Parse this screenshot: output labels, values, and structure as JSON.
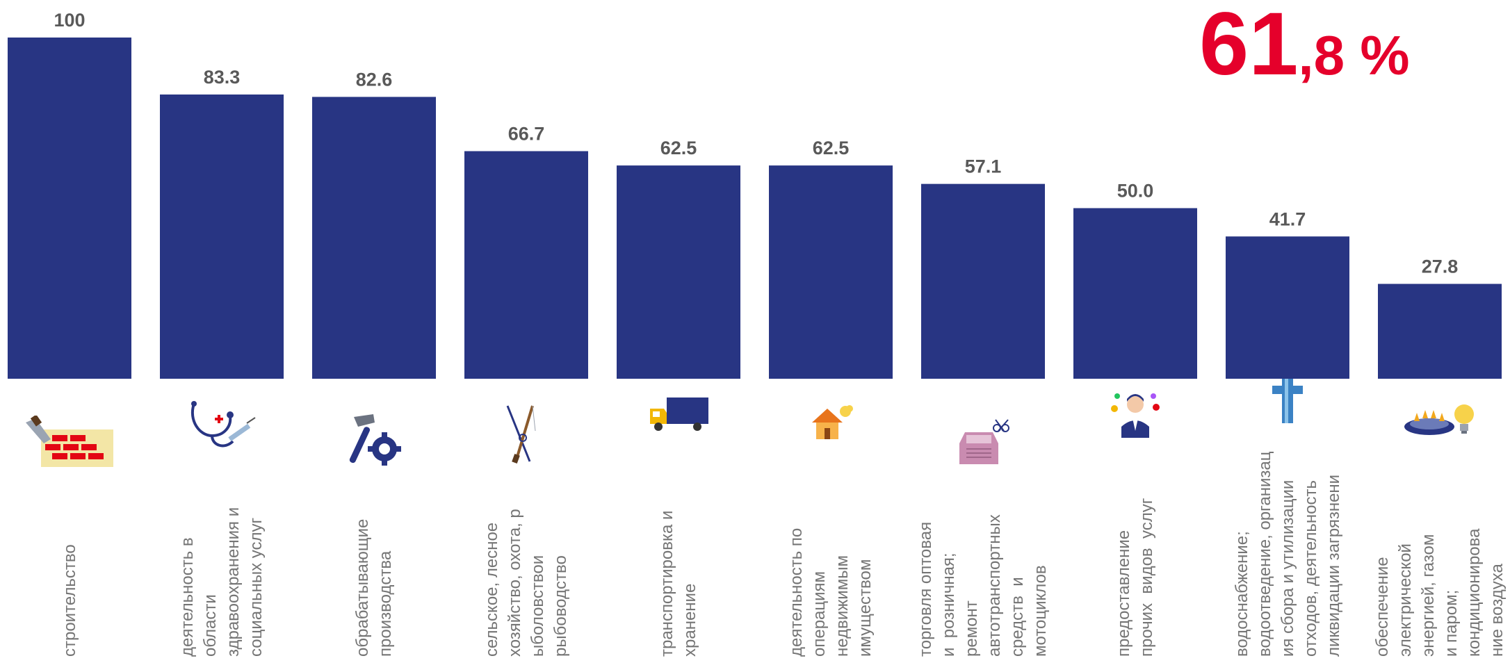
{
  "headline": {
    "integer": "61",
    "fraction": ",8 %",
    "color": "#e5002b"
  },
  "colors": {
    "bar": "#283583",
    "value_label": "#595959",
    "category_label": "#757575"
  },
  "chart_data": {
    "type": "bar",
    "categories": [
      "строительство",
      "деятельность в\nобласти\nздравоохранения и\nсоциальных услуг",
      "обрабатывающие\nпроизводства",
      "сельское, лесное\nхозяйство, охота, р\nыболовствои\nрыбоводство",
      "транспортировка и\nхранение",
      "деятельность по\nоперациям\nнедвижимым\nимуществом",
      "торговля оптовая\nи  розничная;\nремонт\nавтотранспортных\nсредств  и\nмотоциклов",
      "предоставление\nпрочих  видов  услуг",
      "водоснабжение;\nводоотведение, организац\nия сбора и утилизации\nотходов, деятельность\nликвидации загрязнени",
      "обеспечение\nэлектрической\nэнергией, газом\nи паром;\nкондиционирова\nние воздуха"
    ],
    "values": [
      100,
      83.3,
      82.6,
      66.7,
      62.5,
      62.5,
      57.1,
      50.0,
      41.7,
      27.8
    ],
    "value_labels": [
      "100",
      "83.3",
      "82.6",
      "66.7",
      "62.5",
      "62.5",
      "57.1",
      "50.0",
      "41.7",
      "27.8"
    ],
    "icons": [
      "bricks-trowel-icon",
      "stethoscope-syringe-icon",
      "hammer-gear-icon",
      "fishing-rod-rifle-icon",
      "delivery-truck-icon",
      "house-icon",
      "car-scissors-icon",
      "person-services-icon",
      "water-pipe-icon",
      "gas-burner-lightbulb-icon"
    ],
    "ylim": [
      0,
      100
    ],
    "grid": false,
    "legend": "none",
    "title": "",
    "xlabel": "",
    "ylabel": ""
  }
}
